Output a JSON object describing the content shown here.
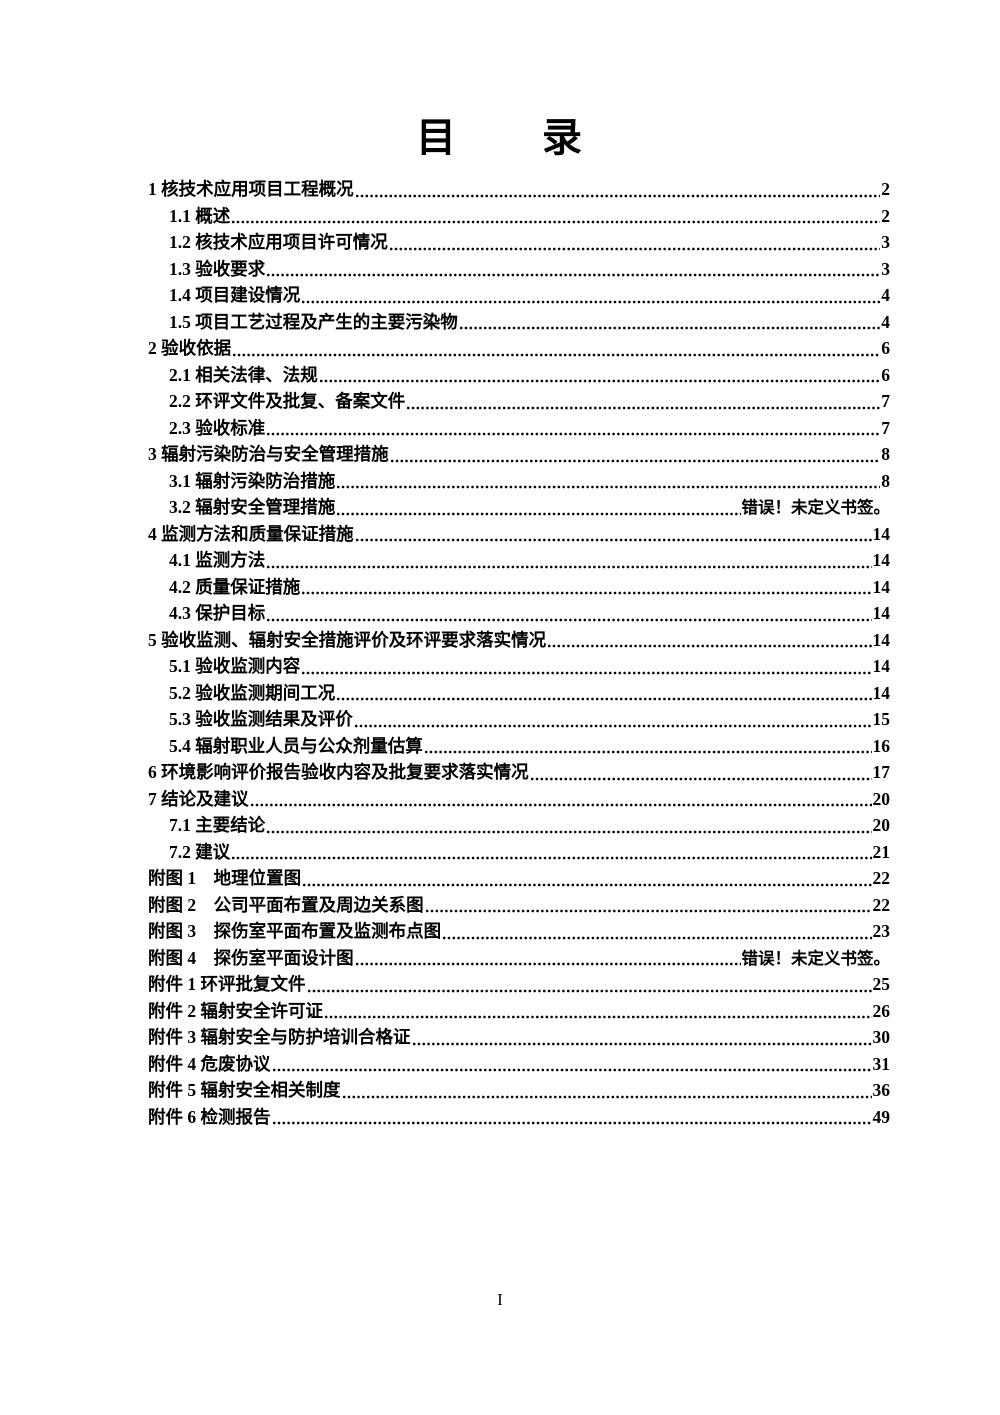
{
  "colors": {
    "text": "#000000",
    "background": "#ffffff"
  },
  "page": {
    "title": "目　　录",
    "footer_page_number": "I"
  },
  "toc": {
    "entries": [
      {
        "label": "1 核技术应用项目工程概况",
        "page": "2",
        "level": 1
      },
      {
        "label": "1.1 概述",
        "page": "2",
        "level": 2
      },
      {
        "label": "1.2 核技术应用项目许可情况",
        "page": "3",
        "level": 2
      },
      {
        "label": "1.3 验收要求",
        "page": "3",
        "level": 2
      },
      {
        "label": "1.4 项目建设情况",
        "page": "4",
        "level": 2
      },
      {
        "label": "1.5 项目工艺过程及产生的主要污染物",
        "page": "4",
        "level": 2
      },
      {
        "label": "2 验收依据",
        "page": "6",
        "level": 1
      },
      {
        "label": "2.1 相关法律、法规",
        "page": "6",
        "level": 2
      },
      {
        "label": "2.2 环评文件及批复、备案文件",
        "page": "7",
        "level": 2
      },
      {
        "label": "2.3 验收标准",
        "page": "7",
        "level": 2
      },
      {
        "label": "3 辐射污染防治与安全管理措施",
        "page": "8",
        "level": 1
      },
      {
        "label": "3.1 辐射污染防治措施",
        "page": "8",
        "level": 2
      },
      {
        "label": "3.2 辐射安全管理措施",
        "page": "错误！未定义书签。",
        "level": 2,
        "error": true
      },
      {
        "label": "4 监测方法和质量保证措施",
        "page": "14",
        "level": 1
      },
      {
        "label": "4.1 监测方法",
        "page": "14",
        "level": 2
      },
      {
        "label": "4.2 质量保证措施",
        "page": "14",
        "level": 2
      },
      {
        "label": "4.3 保护目标",
        "page": "14",
        "level": 2
      },
      {
        "label": "5 验收监测、辐射安全措施评价及环评要求落实情况",
        "page": "14",
        "level": 1
      },
      {
        "label": "5.1 验收监测内容",
        "page": "14",
        "level": 2
      },
      {
        "label": "5.2 验收监测期间工况",
        "page": "14",
        "level": 2
      },
      {
        "label": "5.3 验收监测结果及评价",
        "page": "15",
        "level": 2
      },
      {
        "label": "5.4 辐射职业人员与公众剂量估算",
        "page": "16",
        "level": 2
      },
      {
        "label": "6 环境影响评价报告验收内容及批复要求落实情况",
        "page": "17",
        "level": 1
      },
      {
        "label": "7 结论及建议",
        "page": "20",
        "level": 1
      },
      {
        "label": "7.1 主要结论",
        "page": "20",
        "level": 2
      },
      {
        "label": "7.2 建议",
        "page": "21",
        "level": 2
      },
      {
        "label": "附图 1　地理位置图",
        "page": "22",
        "level": 1
      },
      {
        "label": "附图 2　公司平面布置及周边关系图",
        "page": "22",
        "level": 1
      },
      {
        "label": "附图 3　探伤室平面布置及监测布点图",
        "page": "23",
        "level": 1
      },
      {
        "label": "附图 4　探伤室平面设计图",
        "page": "错误！未定义书签。",
        "level": 1,
        "error": true
      },
      {
        "label": "附件 1 环评批复文件",
        "page": "25",
        "level": 1
      },
      {
        "label": "附件 2 辐射安全许可证",
        "page": "26",
        "level": 1
      },
      {
        "label": "附件 3 辐射安全与防护培训合格证",
        "page": "30",
        "level": 1
      },
      {
        "label": "附件 4 危废协议",
        "page": "31",
        "level": 1
      },
      {
        "label": "附件 5 辐射安全相关制度",
        "page": "36",
        "level": 1
      },
      {
        "label": "附件 6 检测报告",
        "page": "49",
        "level": 1
      }
    ]
  }
}
